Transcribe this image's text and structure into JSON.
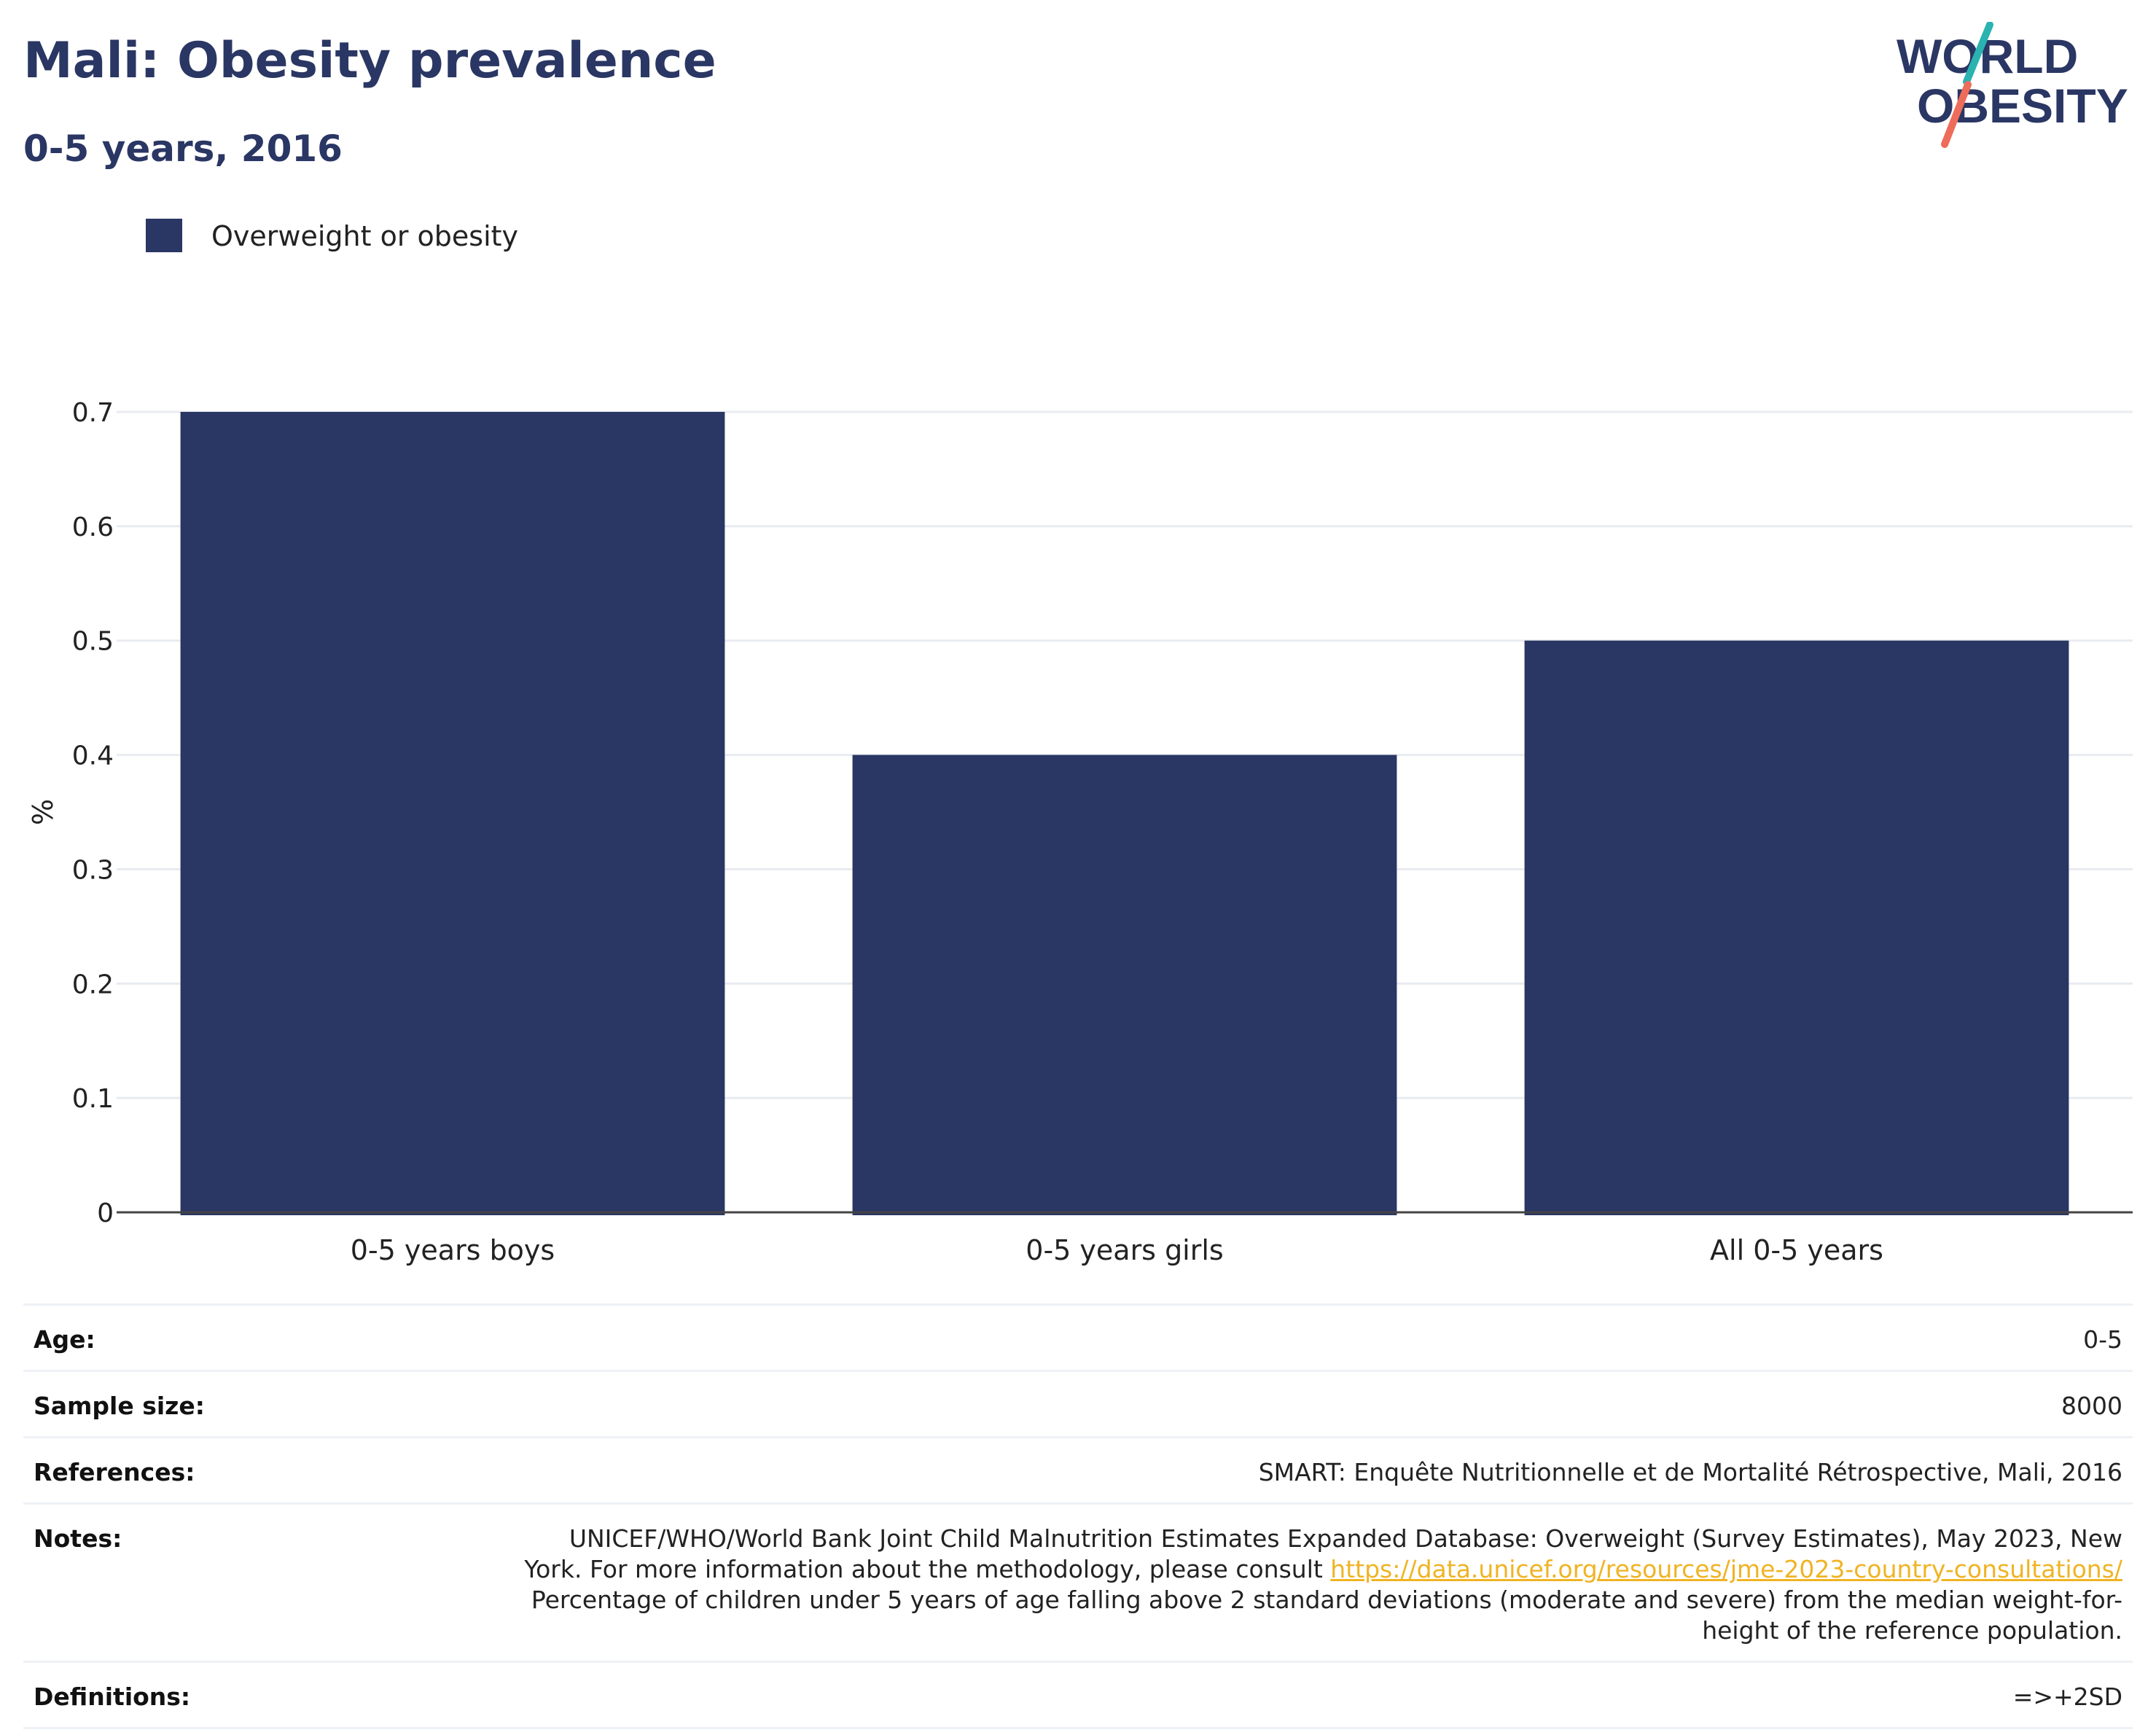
{
  "title": "Mali: Obesity prevalence",
  "subtitle": "0-5 years, 2016",
  "logo": {
    "line1": "WORLD",
    "line2": "OBESITY",
    "accent_teal": "#2ab3b1",
    "accent_coral": "#ee6c5a",
    "text_color": "#2a3663"
  },
  "legend": {
    "label": "Overweight or obesity",
    "color": "#2a3663"
  },
  "chart_data": {
    "type": "bar",
    "categories": [
      "0-5 years boys",
      "0-5 years girls",
      "All 0-5 years"
    ],
    "series": [
      {
        "name": "Overweight or obesity",
        "values": [
          0.7,
          0.4,
          0.5
        ],
        "color": "#2a3663"
      }
    ],
    "xlabel": "",
    "ylabel": "%",
    "ylim": [
      0,
      0.7
    ],
    "yticks": [
      0,
      0.1,
      0.2,
      0.3,
      0.4,
      0.5,
      0.6,
      0.7
    ],
    "ytick_labels": [
      "0",
      "0.1",
      "0.2",
      "0.3",
      "0.4",
      "0.5",
      "0.6",
      "0.7"
    ],
    "grid": true,
    "legend_position": "top-left"
  },
  "info": {
    "age_label": "Age:",
    "age_value": "0-5",
    "sample_label": "Sample size:",
    "sample_value": "8000",
    "references_label": "References:",
    "references_value": "SMART: Enquête Nutritionnelle et de Mortalité Rétrospective, Mali, 2016",
    "notes_label": "Notes:",
    "notes_text_1": "UNICEF/WHO/World Bank Joint Child Malnutrition Estimates Expanded Database: Overweight (Survey Estimates), May 2023, New York. For more information about the methodology, please consult ",
    "notes_link": "https://data.unicef.org/resources/jme-2023-country-consultations/",
    "notes_text_2": "Percentage of children under 5 years of age falling above 2 standard deviations (moderate and severe) from the median weight-for-height of the reference population.",
    "definitions_label": "Definitions:",
    "definitions_value": "=>+2SD"
  }
}
